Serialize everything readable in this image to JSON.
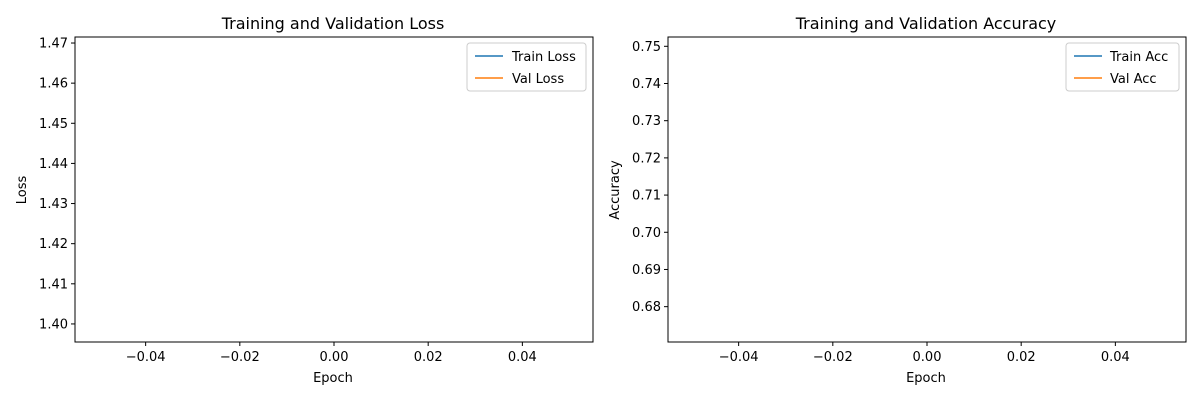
{
  "chart_data": [
    {
      "type": "line",
      "title": "Training and Validation Loss",
      "xlabel": "Epoch",
      "ylabel": "Loss",
      "xlim": [
        -0.055,
        0.055
      ],
      "ylim": [
        1.3955,
        1.4715
      ],
      "xticks": [
        -0.04,
        -0.02,
        0.0,
        0.02,
        0.04
      ],
      "xtick_labels": [
        "−0.04",
        "−0.02",
        "0.00",
        "0.02",
        "0.04"
      ],
      "yticks": [
        1.4,
        1.41,
        1.42,
        1.43,
        1.44,
        1.45,
        1.46,
        1.47
      ],
      "ytick_labels": [
        "1.40",
        "1.41",
        "1.42",
        "1.43",
        "1.44",
        "1.45",
        "1.46",
        "1.47"
      ],
      "grid": false,
      "legend_position": "top-right",
      "series": [
        {
          "name": "Train Loss",
          "color": "#1f77b4",
          "x": [],
          "y": []
        },
        {
          "name": "Val Loss",
          "color": "#ff7f0e",
          "x": [],
          "y": []
        }
      ]
    },
    {
      "type": "line",
      "title": "Training and Validation Accuracy",
      "xlabel": "Epoch",
      "ylabel": "Accuracy",
      "xlim": [
        -0.055,
        0.055
      ],
      "ylim": [
        0.6705,
        0.7525
      ],
      "xticks": [
        -0.04,
        -0.02,
        0.0,
        0.02,
        0.04
      ],
      "xtick_labels": [
        "−0.04",
        "−0.02",
        "0.00",
        "0.02",
        "0.04"
      ],
      "yticks": [
        0.68,
        0.69,
        0.7,
        0.71,
        0.72,
        0.73,
        0.74,
        0.75
      ],
      "ytick_labels": [
        "0.68",
        "0.69",
        "0.70",
        "0.71",
        "0.72",
        "0.73",
        "0.74",
        "0.75"
      ],
      "grid": false,
      "legend_position": "top-right",
      "series": [
        {
          "name": "Train Acc",
          "color": "#1f77b4",
          "x": [],
          "y": []
        },
        {
          "name": "Val Acc",
          "color": "#ff7f0e",
          "x": [],
          "y": []
        }
      ]
    }
  ]
}
